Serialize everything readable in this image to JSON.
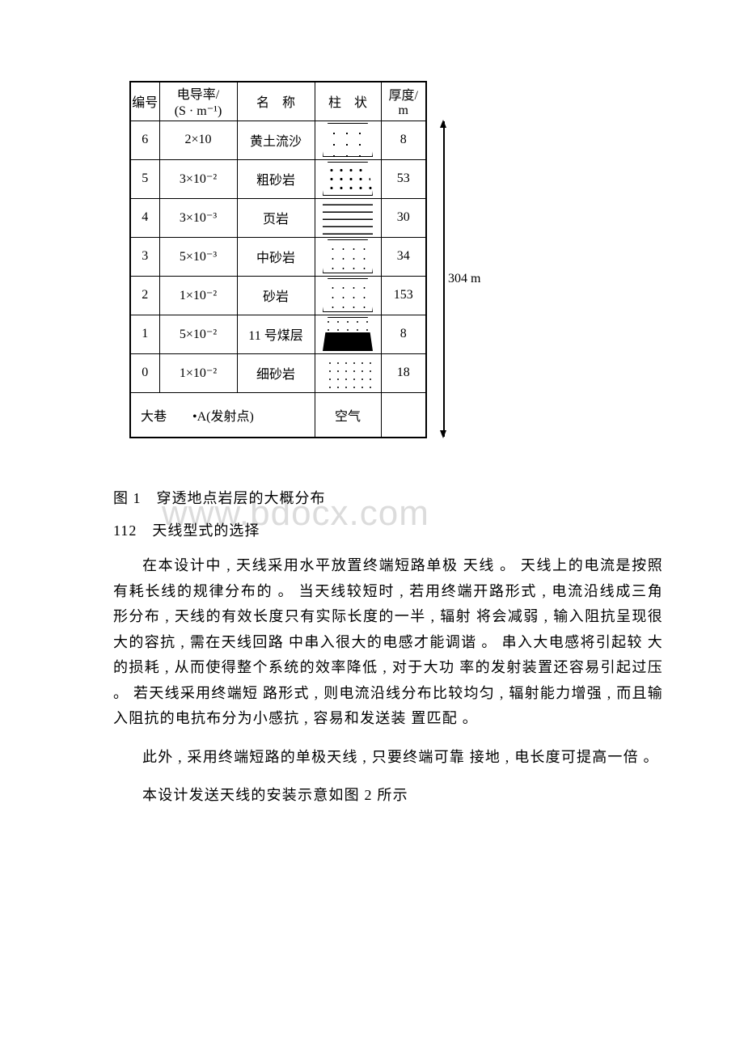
{
  "table": {
    "headers": {
      "num": "编号",
      "cond_label": "电导率/",
      "cond_unit": "(S · m⁻¹)",
      "name": "名　称",
      "pattern": "柱　状",
      "thick_label": "厚度/",
      "thick_unit": "m"
    },
    "rows": [
      {
        "num": "6",
        "cond": "2×10",
        "name": "黄土流沙",
        "thick": "8",
        "cls": "dots-sparse trapezoid"
      },
      {
        "num": "5",
        "cond": "3×10⁻²",
        "name": "粗砂岩",
        "thick": "53",
        "cls": "dots-dense trapezoid"
      },
      {
        "num": "4",
        "cond": "3×10⁻³",
        "name": "页岩",
        "thick": "30",
        "cls": "shale"
      },
      {
        "num": "3",
        "cond": "5×10⁻³",
        "name": "中砂岩",
        "thick": "34",
        "cls": "dots-med trapezoid"
      },
      {
        "num": "2",
        "cond": "1×10⁻²",
        "name": "砂岩",
        "thick": "153",
        "cls": "dots-med trapezoid"
      },
      {
        "num": "1",
        "cond": "5×10⁻²",
        "name": "11 号煤层",
        "thick": "8",
        "cls": "coal-split trapezoid"
      },
      {
        "num": "0",
        "cond": "1×10⁻²",
        "name": "细砂岩",
        "thick": "18",
        "cls": "dots-fine"
      }
    ],
    "footer_left": "大巷　　•A(发射点)",
    "footer_pattern": "空气",
    "total_depth": "304 m"
  },
  "caption": "图 1　穿透地点岩层的大概分布",
  "section": "112　天线型式的选择",
  "para1": "在本设计中 , 天线采用水平放置终端短路单极 天线 。 天线上的电流是按照有耗长线的规律分布的 。 当天线较短时 , 若用终端开路形式 , 电流沿线成三角 形分布 , 天线的有效长度只有实际长度的一半 , 辐射 将会减弱 , 输入阻抗呈现很大的容抗 , 需在天线回路 中串入很大的电感才能调谐 。 串入大电感将引起较 大的损耗 , 从而使得整个系统的效率降低 , 对于大功 率的发射装置还容易引起过压 。 若天线采用终端短 路形式 , 则电流沿线分布比较均匀 , 辐射能力增强 , 而且输入阻抗的电抗布分为小感抗 , 容易和发送装 置匹配 。",
  "para2": "此外 , 采用终端短路的单极天线 , 只要终端可靠 接地 , 电长度可提高一倍 。",
  "para3": "本设计发送天线的安装示意如图 2 所示",
  "watermark": "www.bdocx.com"
}
